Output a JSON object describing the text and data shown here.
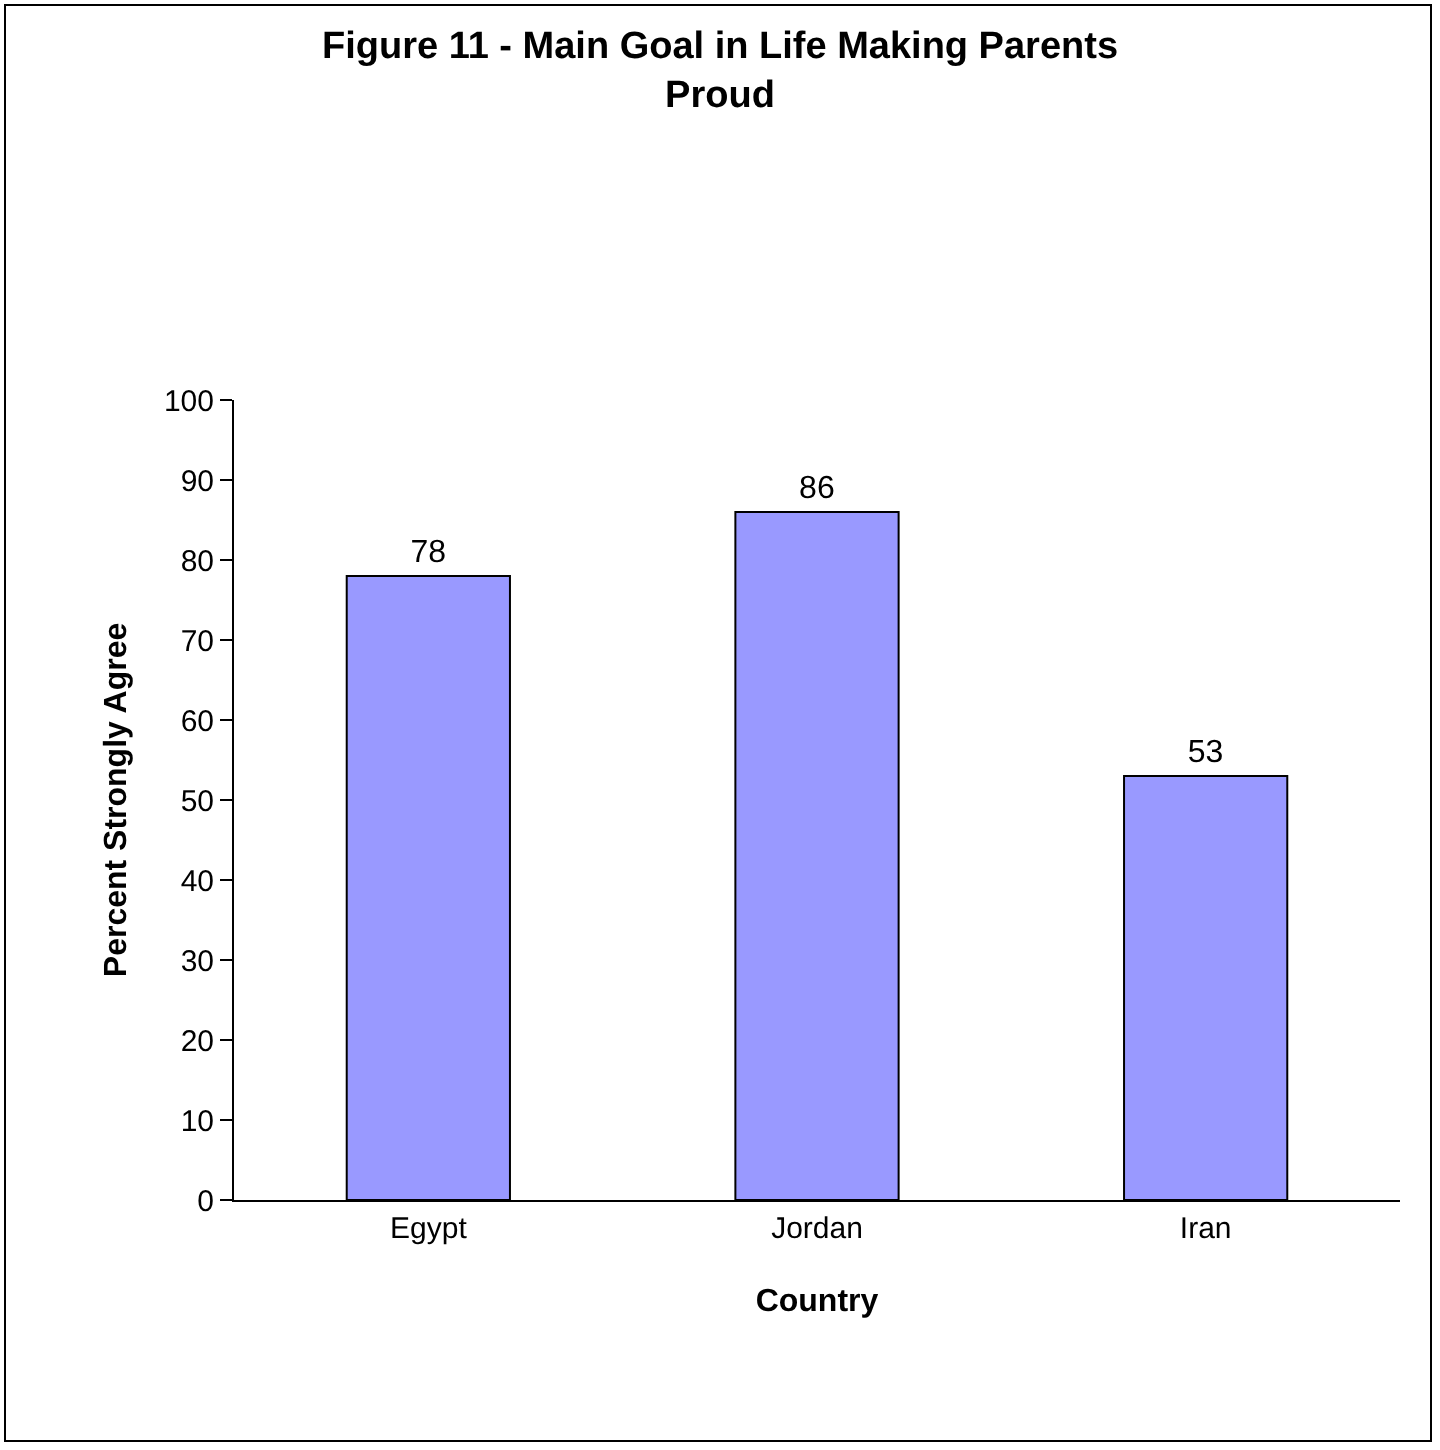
{
  "chart_data": {
    "type": "bar",
    "title": "Figure 11 - Main Goal in Life Making Parents Proud",
    "xlabel": "Country",
    "ylabel": "Percent Strongly Agree",
    "categories": [
      "Egypt",
      "Jordan",
      "Iran"
    ],
    "values": [
      78,
      86,
      53
    ],
    "color": "#9999ff",
    "ylim": [
      0,
      100
    ],
    "yticks": [
      0,
      10,
      20,
      30,
      40,
      50,
      60,
      70,
      80,
      90,
      100
    ],
    "grid": false,
    "data_labels": true
  }
}
